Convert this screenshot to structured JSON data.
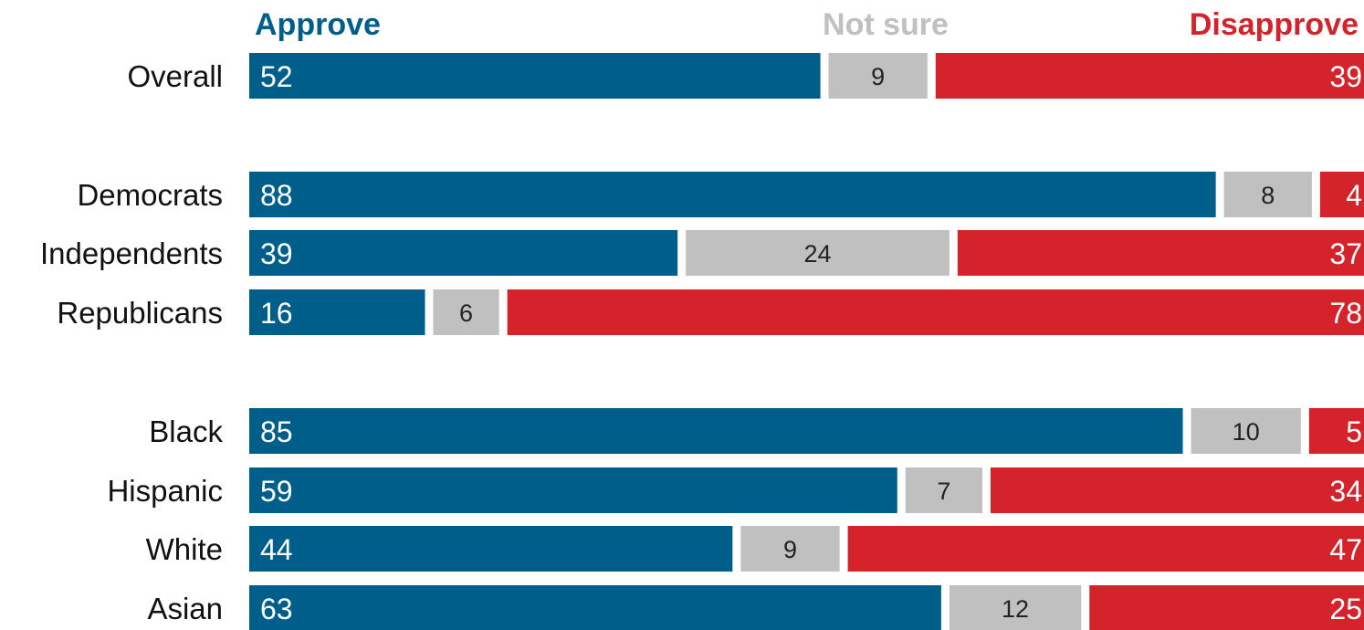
{
  "chart_data": {
    "type": "bar",
    "orientation": "horizontal-stacked-100",
    "legend": [
      "Approve",
      "Not sure",
      "Disapprove"
    ],
    "legend_placement": "top",
    "categories": [
      "Overall",
      "Democrats",
      "Independents",
      "Republicans",
      "Black",
      "Hispanic",
      "White",
      "Asian"
    ],
    "groups": [
      [
        "Overall"
      ],
      [
        "Democrats",
        "Independents",
        "Republicans"
      ],
      [
        "Black",
        "Hispanic",
        "White",
        "Asian"
      ]
    ],
    "series": [
      {
        "name": "Approve",
        "values": [
          52,
          88,
          39,
          16,
          85,
          59,
          44,
          63
        ]
      },
      {
        "name": "Not sure",
        "values": [
          9,
          8,
          24,
          6,
          10,
          7,
          9,
          12
        ]
      },
      {
        "name": "Disapprove",
        "values": [
          39,
          4,
          37,
          78,
          5,
          34,
          47,
          25
        ]
      }
    ],
    "xlim": [
      0,
      100
    ],
    "grid": false,
    "colors": {
      "Approve": "#005e8a",
      "Not sure": "#c0c0c0",
      "Disapprove": "#d4232b"
    }
  }
}
